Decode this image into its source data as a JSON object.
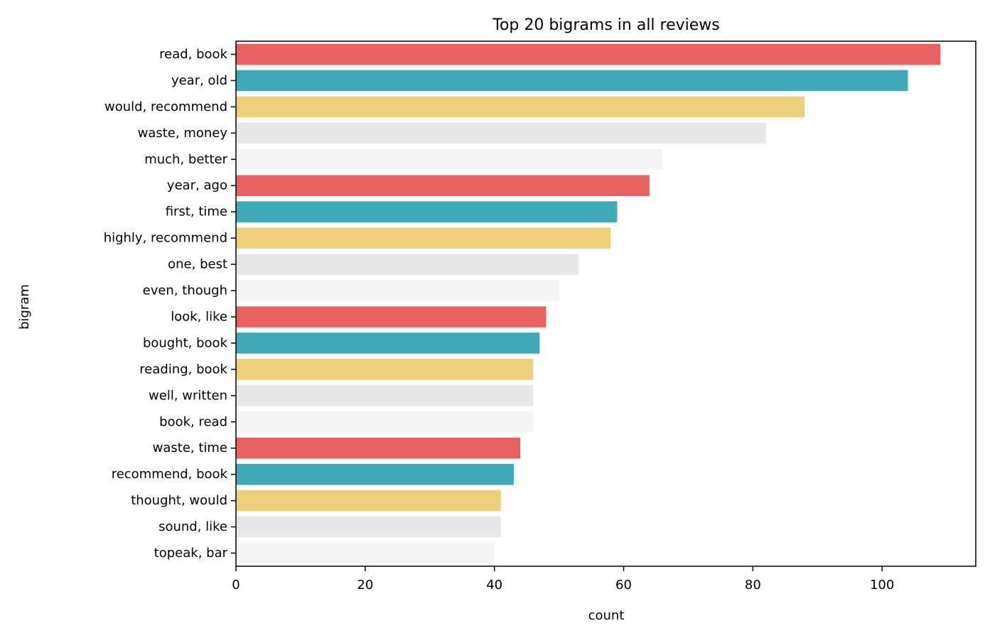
{
  "chart_data": {
    "type": "bar",
    "orientation": "horizontal",
    "title": "Top 20 bigrams in all reviews",
    "xlabel": "count",
    "ylabel": "bigram",
    "xlim": [
      0,
      114.5
    ],
    "xticks": [
      0,
      20,
      40,
      60,
      80,
      100
    ],
    "grid": false,
    "legend": "none",
    "palette": [
      "#e96063",
      "#40a9b6",
      "#ebcf79",
      "#e7e7ea",
      "#f4f4f6"
    ],
    "categories": [
      "read, book",
      "year, old",
      "would, recommend",
      "waste, money",
      "much, better",
      "year, ago",
      "first, time",
      "highly, recommend",
      "one, best",
      "even, though",
      "look, like",
      "bought, book",
      "reading, book",
      "well, written",
      "book, read",
      "waste, time",
      "recommend, book",
      "thought, would",
      "sound, like",
      "topeak, bar"
    ],
    "values": [
      109,
      104,
      88,
      82,
      66,
      64,
      59,
      58,
      53,
      50,
      48,
      47,
      46,
      46,
      46,
      44,
      43,
      41,
      41,
      40
    ]
  }
}
